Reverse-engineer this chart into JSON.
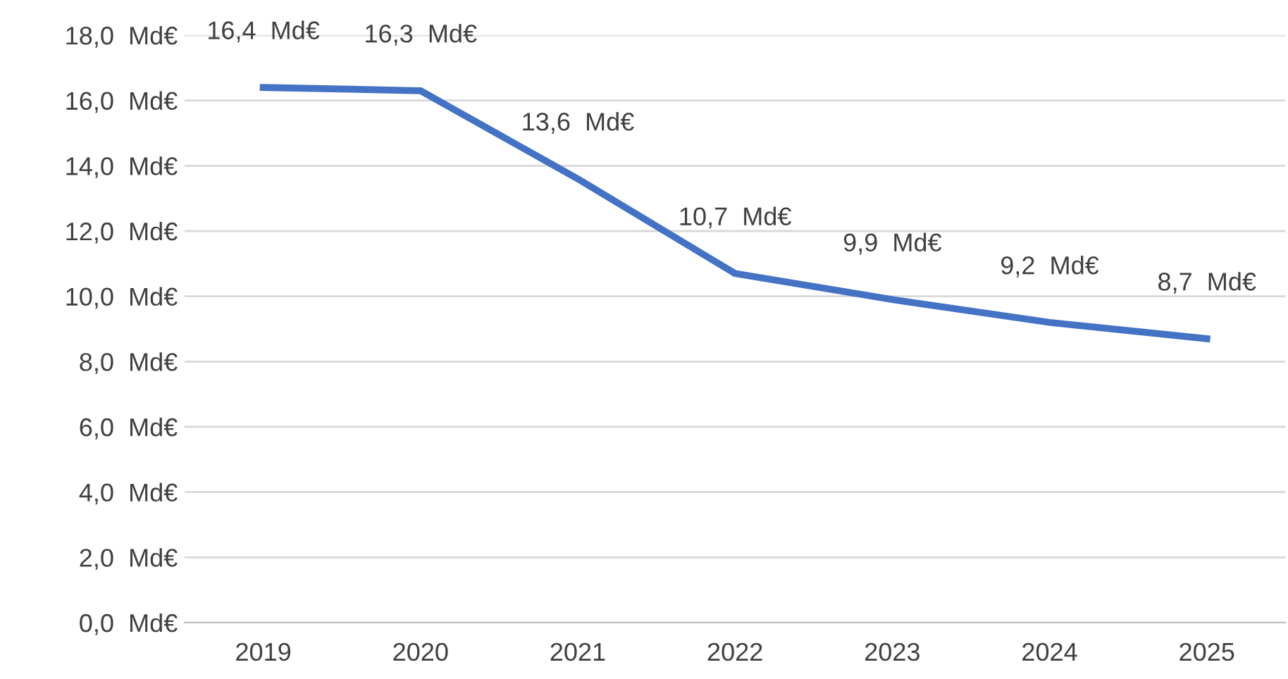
{
  "chart_data": {
    "type": "line",
    "categories": [
      "2019",
      "2020",
      "2021",
      "2022",
      "2023",
      "2024",
      "2025"
    ],
    "series": [
      {
        "color": "#4472c4",
        "values": [
          16.4,
          16.3,
          13.6,
          10.7,
          9.9,
          9.2,
          8.7
        ],
        "value_labels": [
          "16,4  Md€",
          "16,3  Md€",
          "13,6  Md€",
          "10,7  Md€",
          "9,9  Md€",
          "9,2  Md€",
          "8,7  Md€"
        ]
      }
    ],
    "ylim": [
      0,
      18
    ],
    "yticks": [
      {
        "value": 0,
        "label": "0,0  Md€"
      },
      {
        "value": 2,
        "label": "2,0  Md€"
      },
      {
        "value": 4,
        "label": "4,0  Md€"
      },
      {
        "value": 6,
        "label": "6,0  Md€"
      },
      {
        "value": 8,
        "label": "8,0  Md€"
      },
      {
        "value": 10,
        "label": "10,0  Md€"
      },
      {
        "value": 12,
        "label": "12,0  Md€"
      },
      {
        "value": 14,
        "label": "14,0  Md€"
      },
      {
        "value": 16,
        "label": "16,0  Md€"
      },
      {
        "value": 18,
        "label": "18,0  Md€"
      }
    ],
    "grid": "y",
    "legend": false,
    "marker": "none",
    "line_style": "solid"
  }
}
